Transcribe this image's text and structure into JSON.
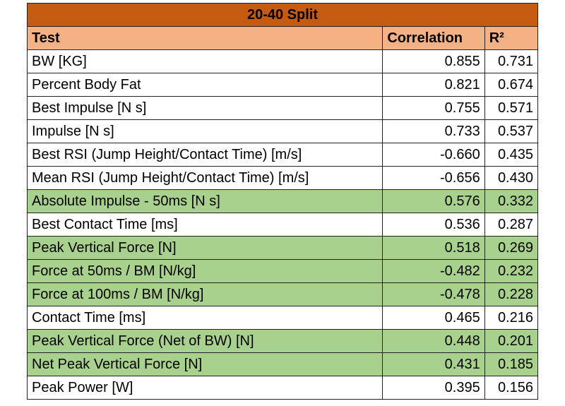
{
  "table": {
    "title": "20-40 Split",
    "header": [
      "Test",
      "Correlation",
      "R²"
    ],
    "rows": [
      [
        "BW [KG]",
        "0.855",
        "0.731"
      ],
      [
        "Percent Body Fat",
        "0.821",
        "0.674"
      ],
      [
        "Best Impulse [N s]",
        "0.755",
        "0.571"
      ],
      [
        "Impulse [N s]",
        "0.733",
        "0.537"
      ],
      [
        "Best RSI (Jump Height/Contact Time) [m/s]",
        "-0.660",
        "0.435"
      ],
      [
        "Mean RSI (Jump Height/Contact Time) [m/s]",
        "-0.656",
        "0.430"
      ],
      [
        "Absolute Impulse - 50ms [N s]",
        "0.576",
        "0.332"
      ],
      [
        "Best Contact Time [ms]",
        "0.536",
        "0.287"
      ],
      [
        "Peak Vertical Force [N]",
        "0.518",
        "0.269"
      ],
      [
        "Force at 50ms / BM [N/kg]",
        "-0.482",
        "0.232"
      ],
      [
        "Force at 100ms / BM [N/kg]",
        "-0.478",
        "0.228"
      ],
      [
        "Contact Time [ms]",
        "0.465",
        "0.216"
      ],
      [
        "Peak Vertical Force (Net of BW) [N]",
        "0.448",
        "0.201"
      ],
      [
        "Net Peak Vertical Force [N]",
        "0.431",
        "0.185"
      ],
      [
        "Peak Power [W]",
        "0.395",
        "0.156"
      ]
    ]
  }
}
